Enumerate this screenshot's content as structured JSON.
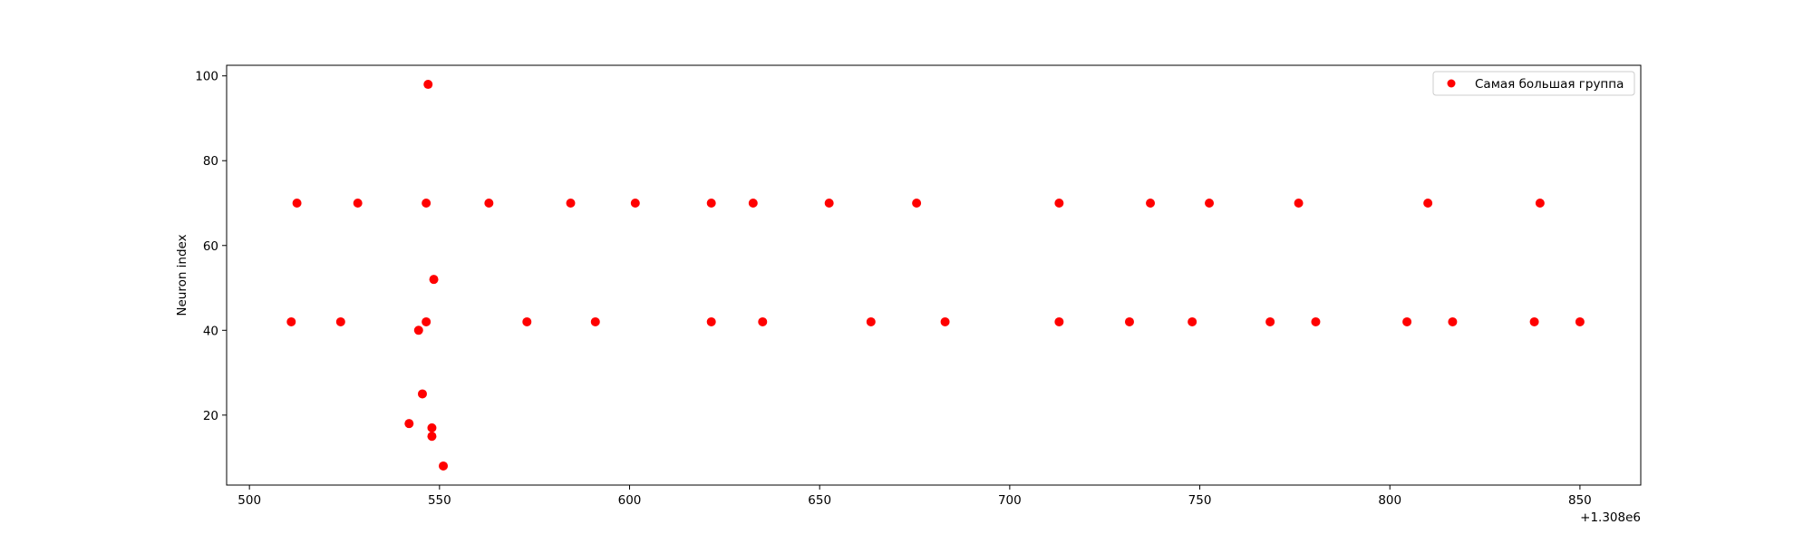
{
  "chart_data": {
    "type": "scatter",
    "xlabel": "",
    "ylabel": "Neuron index",
    "x_offset_label": "+1.308e6",
    "xlim": [
      1308494,
      1308866
    ],
    "ylim": [
      3.5,
      102.5
    ],
    "x_ticks": [
      500,
      550,
      600,
      650,
      700,
      750,
      800,
      850
    ],
    "y_ticks": [
      20,
      40,
      60,
      80,
      100
    ],
    "grid": false,
    "legend": {
      "position": "upper right"
    },
    "colors": {
      "marker": "#ff0000",
      "axes": "#000000",
      "background": "#ffffff"
    },
    "series": [
      {
        "name": "Самая большая группа",
        "color": "#ff0000",
        "points": [
          {
            "x": 1308512.5,
            "y": 70
          },
          {
            "x": 1308528.5,
            "y": 70
          },
          {
            "x": 1308546.5,
            "y": 70
          },
          {
            "x": 1308563.0,
            "y": 70
          },
          {
            "x": 1308584.5,
            "y": 70
          },
          {
            "x": 1308601.5,
            "y": 70
          },
          {
            "x": 1308621.5,
            "y": 70
          },
          {
            "x": 1308632.5,
            "y": 70
          },
          {
            "x": 1308652.5,
            "y": 70
          },
          {
            "x": 1308675.5,
            "y": 70
          },
          {
            "x": 1308713.0,
            "y": 70
          },
          {
            "x": 1308737.0,
            "y": 70
          },
          {
            "x": 1308752.5,
            "y": 70
          },
          {
            "x": 1308776.0,
            "y": 70
          },
          {
            "x": 1308810.0,
            "y": 70
          },
          {
            "x": 1308839.5,
            "y": 70
          },
          {
            "x": 1308511.0,
            "y": 42
          },
          {
            "x": 1308524.0,
            "y": 42
          },
          {
            "x": 1308546.5,
            "y": 42
          },
          {
            "x": 1308573.0,
            "y": 42
          },
          {
            "x": 1308591.0,
            "y": 42
          },
          {
            "x": 1308621.5,
            "y": 42
          },
          {
            "x": 1308635.0,
            "y": 42
          },
          {
            "x": 1308663.5,
            "y": 42
          },
          {
            "x": 1308683.0,
            "y": 42
          },
          {
            "x": 1308713.0,
            "y": 42
          },
          {
            "x": 1308731.5,
            "y": 42
          },
          {
            "x": 1308748.0,
            "y": 42
          },
          {
            "x": 1308768.5,
            "y": 42
          },
          {
            "x": 1308780.5,
            "y": 42
          },
          {
            "x": 1308804.5,
            "y": 42
          },
          {
            "x": 1308816.5,
            "y": 42
          },
          {
            "x": 1308838.0,
            "y": 42
          },
          {
            "x": 1308850.0,
            "y": 42
          },
          {
            "x": 1308547.0,
            "y": 98
          },
          {
            "x": 1308548.5,
            "y": 52
          },
          {
            "x": 1308544.5,
            "y": 40
          },
          {
            "x": 1308545.5,
            "y": 25
          },
          {
            "x": 1308542.0,
            "y": 18
          },
          {
            "x": 1308548.0,
            "y": 17
          },
          {
            "x": 1308548.0,
            "y": 15
          },
          {
            "x": 1308551.0,
            "y": 8
          }
        ]
      }
    ]
  }
}
